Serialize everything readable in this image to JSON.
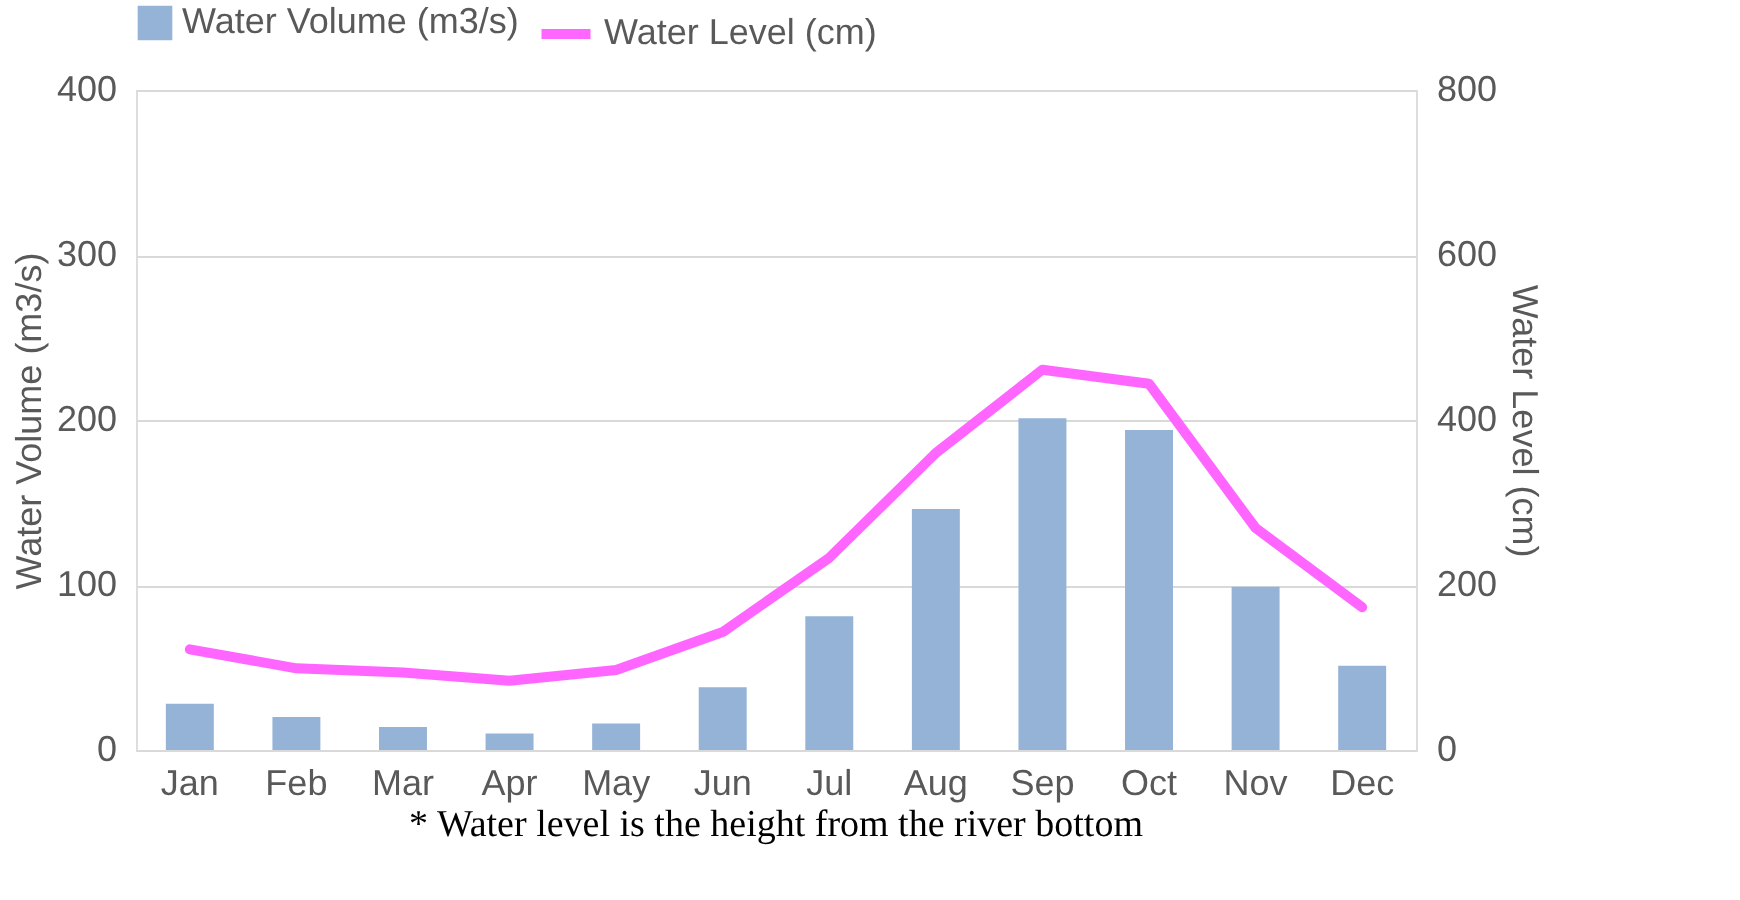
{
  "chart_data": {
    "type": "bar",
    "categories": [
      "Jan",
      "Feb",
      "Mar",
      "Apr",
      "May",
      "Jun",
      "Jul",
      "Aug",
      "Sep",
      "Oct",
      "Nov",
      "Dec"
    ],
    "series": [
      {
        "name": "Water Volume (m3/s)",
        "color": "#95b3d7",
        "values": [
          28,
          20,
          14,
          10,
          16,
          38,
          81,
          146,
          201,
          194,
          99,
          51
        ]
      },
      {
        "name": "Water Level (cm)",
        "type": "line",
        "axis": "y2",
        "color": "#ff66ff",
        "values": [
          122,
          99,
          94,
          84,
          97,
          143,
          233,
          360,
          461,
          444,
          269,
          173
        ]
      }
    ],
    "ylabel": "Water Volume (m3/s)",
    "y2label": "Water Level (cm)",
    "ylim": [
      0,
      400
    ],
    "yticks": [
      0,
      100,
      200,
      300,
      400
    ],
    "y2lim": [
      0,
      800
    ],
    "y2ticks": [
      0,
      200,
      400,
      600,
      800
    ],
    "grid": "y",
    "legend": "top",
    "marker": "none",
    "line_style": "solid",
    "annotations": [
      "* Water level is the height from the river bottom"
    ]
  }
}
